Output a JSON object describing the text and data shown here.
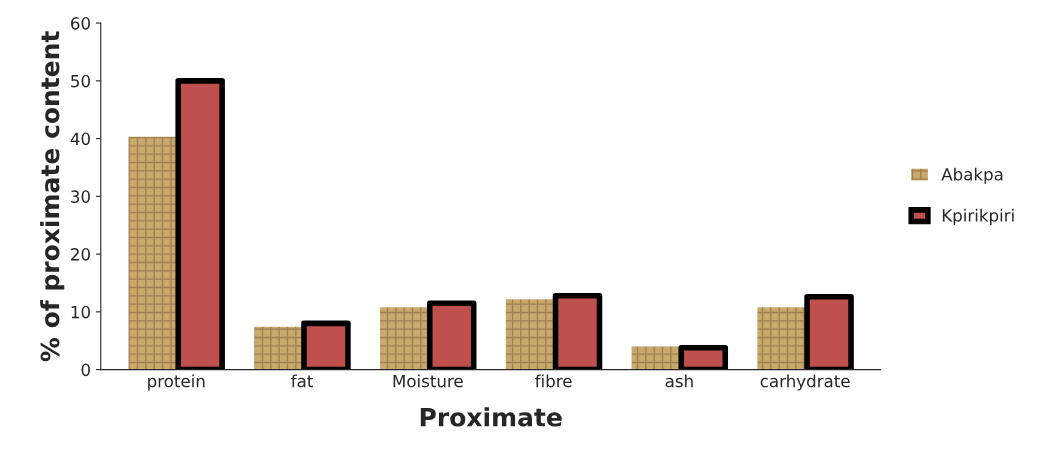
{
  "chart_data": {
    "type": "bar",
    "xlabel": "Proximate",
    "ylabel": "% of proximate content",
    "categories": [
      "protein",
      "fat",
      "Moisture",
      "fibre",
      "ash",
      "carhydrate"
    ],
    "series": [
      {
        "name": "Abakpa",
        "color": "#c9a96b",
        "values": [
          40.3,
          7.4,
          10.8,
          12.2,
          4.0,
          10.8
        ]
      },
      {
        "name": "Kpirikpiri",
        "color": "#c0504d",
        "values": [
          50.0,
          8.0,
          11.5,
          12.8,
          3.8,
          12.6
        ]
      }
    ],
    "ylim": [
      0,
      60
    ],
    "yticks": [
      0,
      10,
      20,
      30,
      40,
      50,
      60
    ],
    "grid": false,
    "legend": "right"
  }
}
